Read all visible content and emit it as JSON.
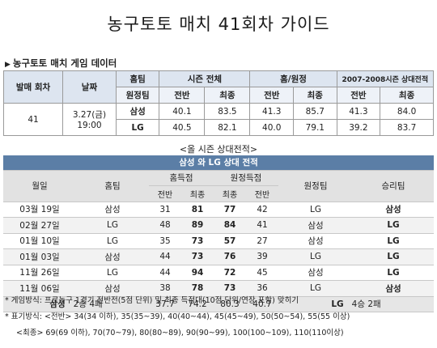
{
  "title": "농구토토 매치 41회차 가이드",
  "section": {
    "marker": "▶",
    "title": "농구토토 매치 게임 데이터"
  },
  "game_table": {
    "h_round": "발매 회차",
    "h_date": "날짜",
    "h_hometeam": "홈팀",
    "h_season": "시즌 전체",
    "h_homeaway": "홈/원정",
    "h_vs": "2007-2008시즌 상대전적",
    "h_awayteam": "원정팀",
    "h_first": "전반",
    "h_final": "최종",
    "round": "41",
    "date": "3.27(금)",
    "time": "19:00",
    "teams": [
      {
        "name": "삼성",
        "season_first": "40.1",
        "season_final": "83.5",
        "ha_first": "41.3",
        "ha_final": "85.7",
        "vs_first": "41.3",
        "vs_final": "84.0"
      },
      {
        "name": "LG",
        "season_first": "40.5",
        "season_final": "82.1",
        "ha_first": "40.0",
        "ha_final": "79.1",
        "vs_first": "39.2",
        "vs_final": "83.7"
      }
    ]
  },
  "subtitle": "<올 시즌 상대전적>",
  "record_table": {
    "banner": "삼성 와 LG 상대 전적",
    "h_date": "월일",
    "h_home": "홈팀",
    "h_home_score": "홈득점",
    "h_away_score": "원정득점",
    "h_away": "원정팀",
    "h_winner": "승리팀",
    "h_first": "전반",
    "h_final": "최종",
    "rows": [
      {
        "date": "03월 19일",
        "home": "삼성",
        "hf": "31",
        "hfin": "81",
        "af": "77",
        "afin": "42",
        "away": "LG",
        "winner": "삼성"
      },
      {
        "date": "02월 27일",
        "home": "LG",
        "hf": "48",
        "hfin": "89",
        "af": "84",
        "afin": "41",
        "away": "삼성",
        "winner": "LG"
      },
      {
        "date": "01월 10일",
        "home": "LG",
        "hf": "35",
        "hfin": "73",
        "af": "57",
        "afin": "27",
        "away": "삼성",
        "winner": "LG"
      },
      {
        "date": "01월 03일",
        "home": "삼성",
        "hf": "44",
        "hfin": "73",
        "af": "76",
        "afin": "39",
        "away": "LG",
        "winner": "LG"
      },
      {
        "date": "11월 26일",
        "home": "LG",
        "hf": "44",
        "hfin": "94",
        "af": "72",
        "afin": "45",
        "away": "삼성",
        "winner": "LG"
      },
      {
        "date": "11월 06일",
        "home": "삼성",
        "hf": "38",
        "hfin": "78",
        "af": "73",
        "afin": "36",
        "away": "LG",
        "winner": "삼성"
      }
    ],
    "summary": {
      "team_a": "삼성",
      "record_a": "2승 4패",
      "hf": "37.7",
      "hfin": "74.2",
      "af": "80.3",
      "afin": "40.7",
      "team_b": "LG",
      "record_b": "4승 2패"
    }
  },
  "notes": {
    "line1": "* 게임방식: 프로농구 1경기 전반전(5점 단위) 및 최종 득점대(10점 단위/연장 포함) 맞히기",
    "line2": "* 표기방식: <전반> 34(34 이하), 35(35~39), 40(40~44), 45(45~49), 50(50~54), 55(55 이상)",
    "line3": "<최종> 69(69 이하), 70(70~79), 80(80~89), 90(90~99), 100(100~109), 110(110이상)"
  }
}
